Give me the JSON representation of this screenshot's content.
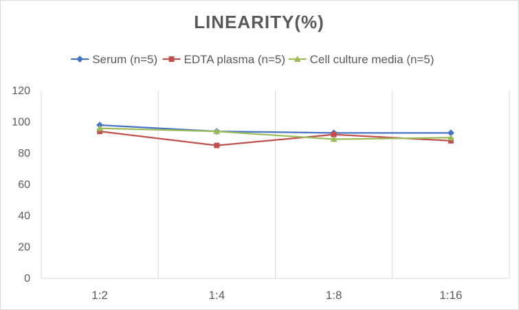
{
  "chart_data": {
    "type": "line",
    "title": "LINEARITY(%)",
    "xlabel": "",
    "ylabel": "",
    "categories": [
      "1:2",
      "1:4",
      "1:8",
      "1:16"
    ],
    "ylim": [
      0,
      120
    ],
    "yticks": [
      0,
      20,
      40,
      60,
      80,
      100,
      120
    ],
    "grid": "vertical",
    "legend_position": "top",
    "series": [
      {
        "name": "Serum (n=5)",
        "values": [
          98,
          94,
          93,
          93
        ],
        "color": "#4472C4",
        "marker": "diamond"
      },
      {
        "name": "EDTA plasma (n=5)",
        "values": [
          94,
          85,
          92,
          88
        ],
        "color": "#C0504D",
        "marker": "square"
      },
      {
        "name": "Cell culture media (n=5)",
        "values": [
          96,
          94,
          89,
          90
        ],
        "color": "#9BBB59",
        "marker": "triangle"
      }
    ]
  }
}
